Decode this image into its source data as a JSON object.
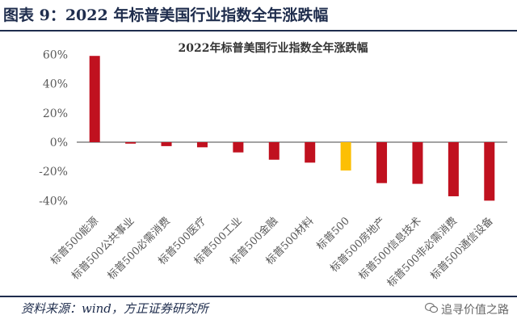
{
  "figure": {
    "title": "图表 9：2022 年标普美国行业指数全年涨跌幅",
    "source": "资料来源：wind，方正证券研究所",
    "watermark": "追寻价值之路"
  },
  "chart_data": {
    "type": "bar",
    "title": "2022年标普美国行业指数全年涨跌幅",
    "categories": [
      "标普500能源",
      "标普500公共事业",
      "标普500必需消费",
      "标普500医疗",
      "标普500工业",
      "标普500金融",
      "标普500材料",
      "标普500",
      "标普500房地产",
      "标普500信息技术",
      "标普500非必需消费",
      "标普500通信设备"
    ],
    "values": [
      59,
      -1,
      -2.7,
      -3.5,
      -7,
      -12,
      -14,
      -19.4,
      -28,
      -28.5,
      -37,
      -40
    ],
    "highlight_index": 7,
    "yticks": [
      "60%",
      "40%",
      "20%",
      "0%",
      "-20%",
      "-40%"
    ],
    "ylim": [
      -50,
      65
    ],
    "xlabel": "",
    "ylabel": "",
    "grid": false,
    "legend": "none",
    "colors": {
      "bar": "#c0111f",
      "highlight": "#fcbf05",
      "axis": "#444444",
      "text": "#595959"
    }
  }
}
